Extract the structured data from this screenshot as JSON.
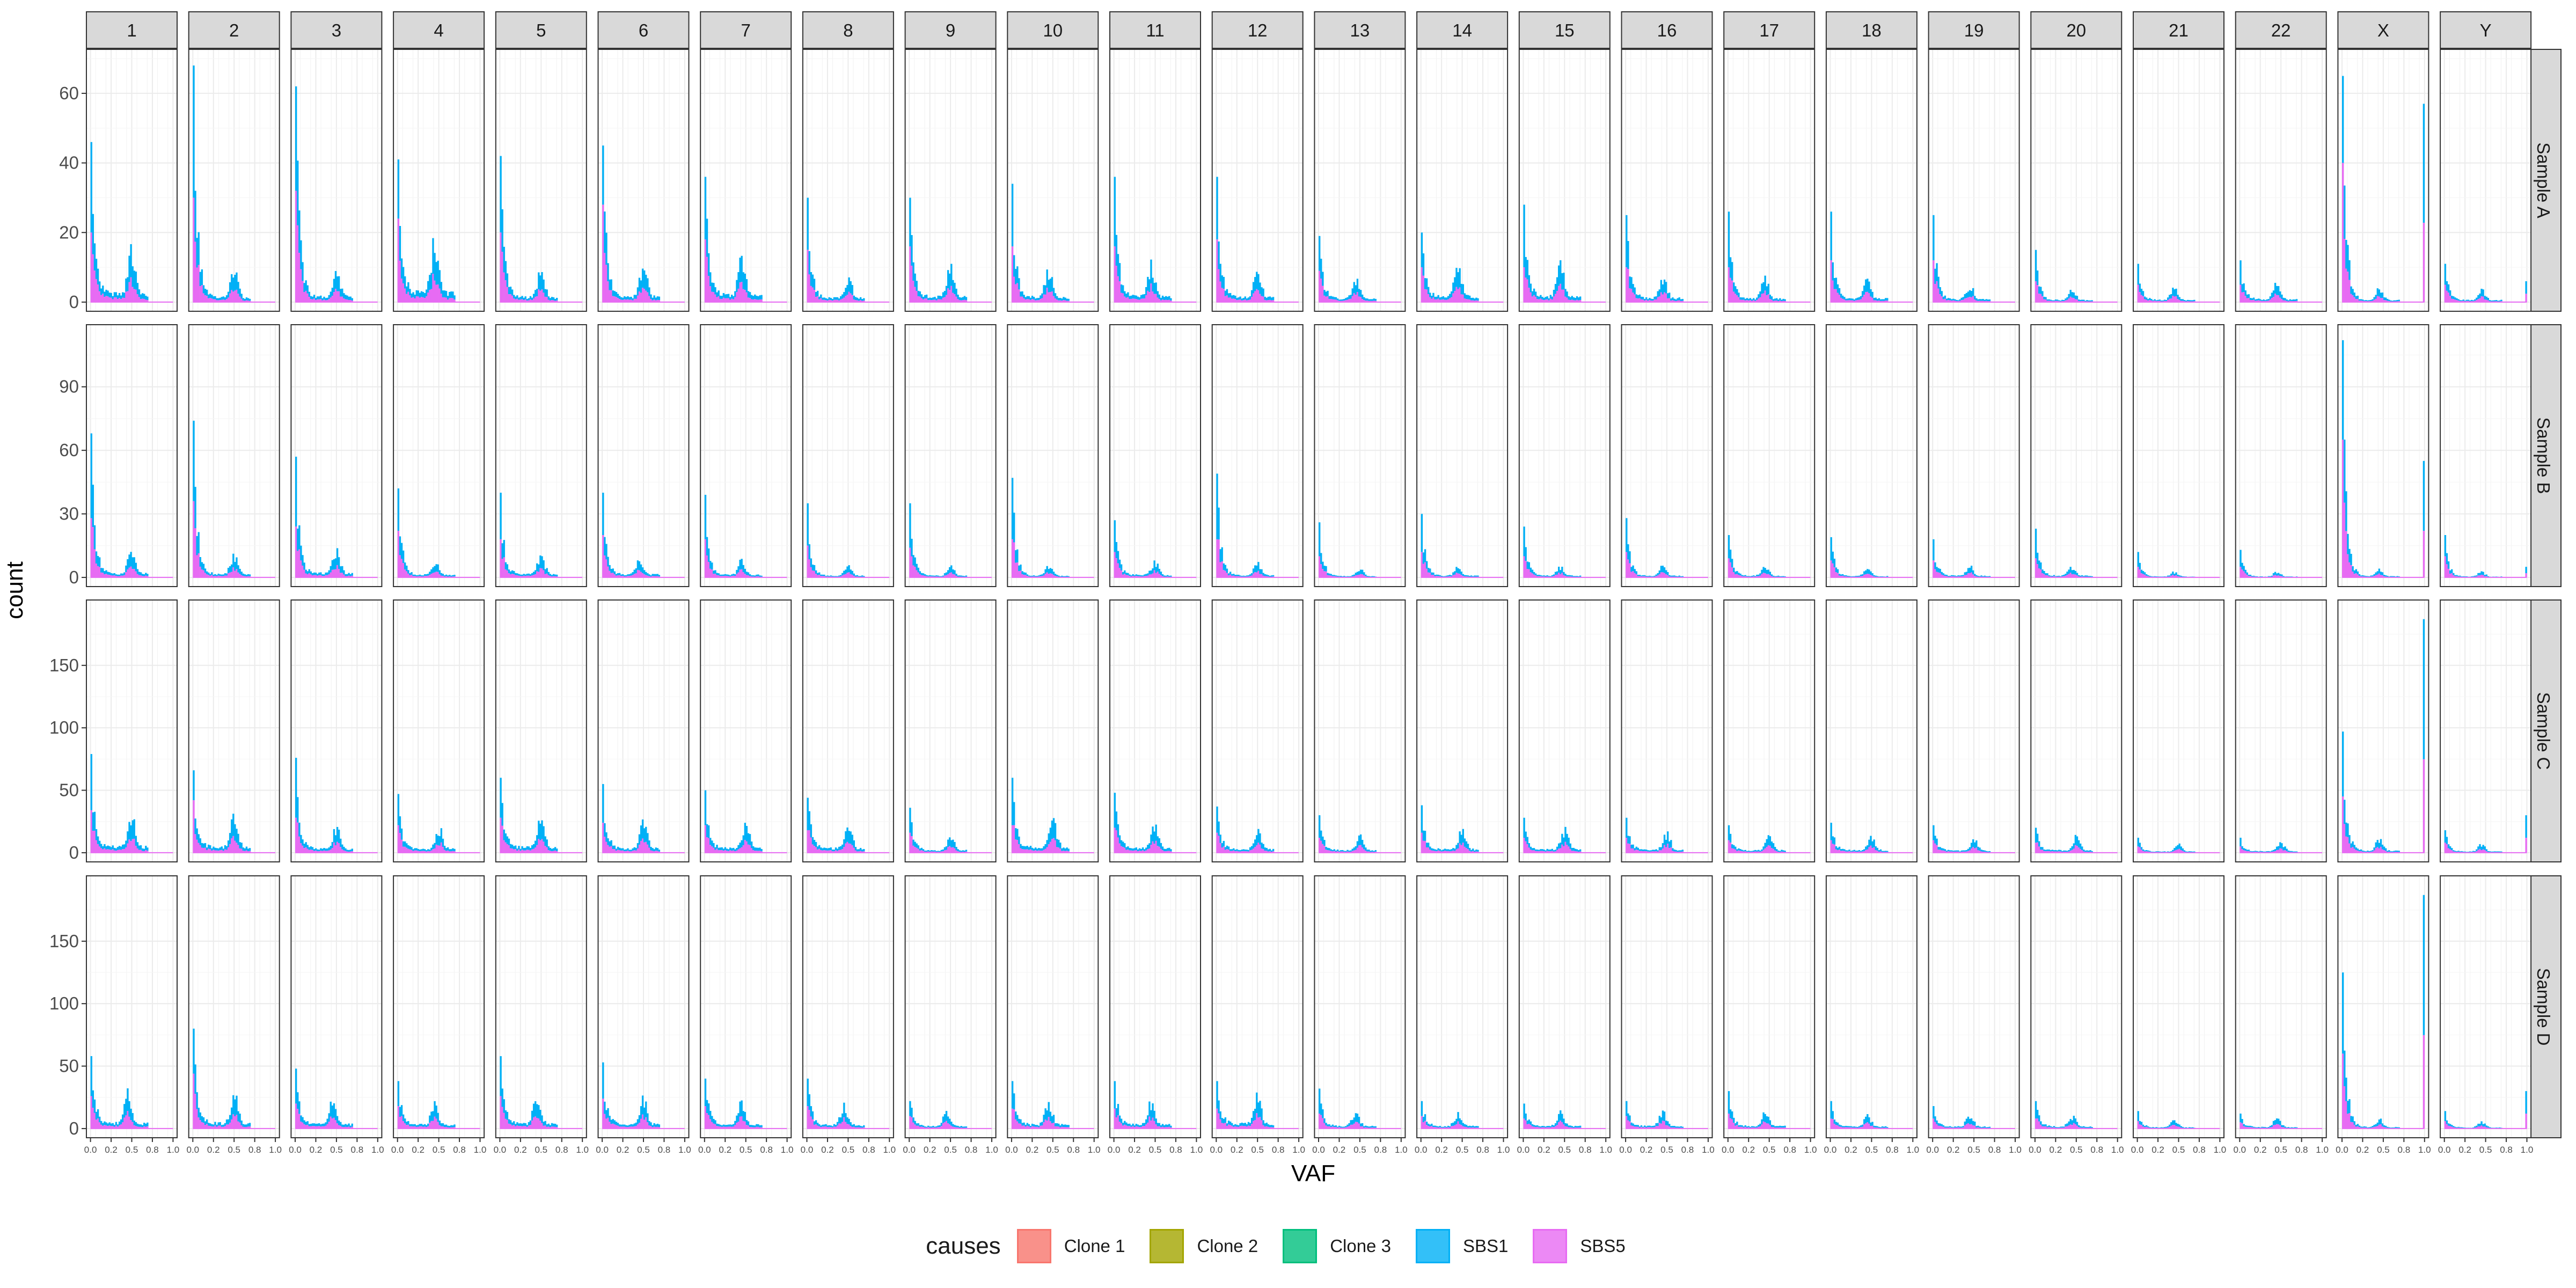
{
  "chart_data": {
    "type": "histogram-facet-grid",
    "xlabel": "VAF",
    "ylabel": "count",
    "columns": [
      "1",
      "2",
      "3",
      "4",
      "5",
      "6",
      "7",
      "8",
      "9",
      "10",
      "11",
      "12",
      "13",
      "14",
      "15",
      "16",
      "17",
      "18",
      "19",
      "20",
      "21",
      "22",
      "X",
      "Y"
    ],
    "rows": [
      "Sample A",
      "Sample B",
      "Sample C",
      "Sample D"
    ],
    "x_ticks": [
      "0.0",
      "0.2",
      "0.5",
      "0.8",
      "1.0"
    ],
    "x_tick_values": [
      0,
      0.25,
      0.5,
      0.75,
      1
    ],
    "xlim": [
      0,
      1
    ],
    "y_axes": [
      {
        "row": "Sample A",
        "ylim": [
          0,
          70
        ],
        "ticks": [
          0,
          20,
          40,
          60
        ]
      },
      {
        "row": "Sample B",
        "ylim": [
          0,
          115
        ],
        "ticks": [
          0,
          30,
          60,
          90
        ]
      },
      {
        "row": "Sample C",
        "ylim": [
          0,
          195
        ],
        "ticks": [
          0,
          50,
          100,
          150
        ]
      },
      {
        "row": "Sample D",
        "ylim": [
          0,
          195
        ],
        "ticks": [
          0,
          50,
          100,
          150
        ]
      }
    ],
    "legend": {
      "title": "causes",
      "position": "bottom",
      "items": [
        {
          "name": "Clone 1",
          "fill": "#F8766D"
        },
        {
          "name": "Clone 2",
          "fill": "#A3A500"
        },
        {
          "name": "Clone 3",
          "fill": "#00BF7D"
        },
        {
          "name": "SBS1",
          "fill": "#00B0F6"
        },
        {
          "name": "SBS5",
          "fill": "#E76BF3"
        }
      ]
    },
    "grid": true,
    "bins": 50,
    "panels": {
      "Sample A": {
        "peak_total": [
          46,
          68,
          62,
          41,
          42,
          45,
          36,
          30,
          30,
          34,
          36,
          36,
          19,
          20,
          28,
          25,
          26,
          26,
          25,
          15,
          11,
          12,
          65,
          11
        ],
        "peak_sbs5": [
          20,
          30,
          32,
          24,
          20,
          28,
          18,
          15,
          16,
          16,
          16,
          18,
          9,
          10,
          10,
          10,
          10,
          12,
          12,
          6,
          5,
          5,
          40,
          5
        ],
        "subclonal_peak": [
          12,
          7,
          8,
          14,
          7,
          8,
          10,
          6,
          8,
          7,
          8,
          7,
          5,
          8,
          8,
          6,
          5,
          5,
          4,
          3,
          3,
          4,
          3,
          3
        ],
        "clonal_peak_pos": [
          0.5,
          0.5,
          0.5,
          0.45,
          0.5,
          0.5,
          0.45,
          0.5,
          0.5,
          0.45,
          0.45,
          0.5,
          0.45,
          0.45,
          0.45,
          0.45,
          0.45,
          0.45,
          0.45,
          0.45,
          0.45,
          0.45,
          0.45,
          0.45
        ],
        "end_spike": [
          0,
          0,
          0,
          0,
          0,
          0,
          0,
          0,
          0,
          0,
          0,
          0,
          0,
          0,
          0,
          0,
          0,
          0,
          0,
          0,
          0,
          0,
          57,
          6
        ]
      },
      "Sample B": {
        "peak_total": [
          68,
          74,
          57,
          42,
          40,
          40,
          39,
          35,
          35,
          47,
          27,
          49,
          26,
          30,
          24,
          28,
          20,
          19,
          18,
          23,
          12,
          13,
          112,
          20
        ],
        "peak_sbs5": [
          28,
          36,
          24,
          22,
          18,
          20,
          18,
          15,
          14,
          18,
          12,
          18,
          10,
          12,
          10,
          12,
          9,
          8,
          8,
          9,
          5,
          5,
          65,
          10
        ],
        "subclonal_peak": [
          10,
          8,
          10,
          6,
          8,
          7,
          6,
          4,
          4,
          4,
          6,
          5,
          3,
          4,
          4,
          4,
          4,
          3,
          4,
          4,
          2,
          2,
          3,
          2
        ],
        "clonal_peak_pos": [
          0.5,
          0.5,
          0.5,
          0.45,
          0.5,
          0.45,
          0.45,
          0.5,
          0.5,
          0.45,
          0.5,
          0.5,
          0.5,
          0.45,
          0.45,
          0.45,
          0.45,
          0.45,
          0.45,
          0.45,
          0.45,
          0.45,
          0.45,
          0.45
        ],
        "end_spike": [
          0,
          0,
          0,
          0,
          0,
          0,
          0,
          0,
          0,
          0,
          0,
          0,
          0,
          0,
          0,
          0,
          0,
          0,
          0,
          0,
          0,
          0,
          55,
          5
        ]
      },
      "Sample C": {
        "peak_total": [
          79,
          66,
          76,
          47,
          60,
          55,
          50,
          44,
          36,
          60,
          48,
          37,
          30,
          38,
          28,
          28,
          22,
          24,
          22,
          20,
          12,
          12,
          97,
          18
        ],
        "peak_sbs5": [
          34,
          42,
          28,
          22,
          28,
          24,
          22,
          18,
          16,
          22,
          20,
          16,
          12,
          16,
          12,
          12,
          10,
          10,
          10,
          8,
          5,
          5,
          45,
          8
        ],
        "subclonal_peak": [
          24,
          22,
          16,
          16,
          22,
          18,
          18,
          18,
          10,
          22,
          18,
          14,
          10,
          14,
          14,
          12,
          10,
          10,
          8,
          10,
          5,
          6,
          8,
          5
        ],
        "clonal_peak_pos": [
          0.5,
          0.5,
          0.5,
          0.5,
          0.5,
          0.5,
          0.5,
          0.5,
          0.5,
          0.5,
          0.5,
          0.5,
          0.5,
          0.5,
          0.5,
          0.5,
          0.5,
          0.5,
          0.5,
          0.5,
          0.5,
          0.5,
          0.45,
          0.45
        ],
        "end_spike": [
          0,
          0,
          0,
          0,
          0,
          0,
          0,
          0,
          0,
          0,
          0,
          0,
          0,
          0,
          0,
          0,
          0,
          0,
          0,
          0,
          0,
          0,
          187,
          30
        ]
      },
      "Sample D": {
        "peak_total": [
          58,
          80,
          48,
          38,
          58,
          53,
          40,
          40,
          22,
          38,
          38,
          38,
          32,
          22,
          20,
          22,
          30,
          22,
          18,
          22,
          14,
          12,
          125,
          14
        ],
        "peak_sbs5": [
          26,
          44,
          20,
          18,
          26,
          24,
          18,
          18,
          10,
          16,
          16,
          16,
          12,
          10,
          8,
          10,
          12,
          8,
          8,
          8,
          6,
          5,
          60,
          6
        ],
        "subclonal_peak": [
          22,
          22,
          18,
          16,
          20,
          18,
          16,
          14,
          10,
          16,
          16,
          20,
          10,
          10,
          10,
          10,
          10,
          8,
          8,
          8,
          5,
          6,
          6,
          4
        ],
        "clonal_peak_pos": [
          0.45,
          0.5,
          0.45,
          0.45,
          0.45,
          0.5,
          0.45,
          0.45,
          0.45,
          0.45,
          0.45,
          0.5,
          0.45,
          0.45,
          0.45,
          0.45,
          0.45,
          0.45,
          0.45,
          0.45,
          0.45,
          0.45,
          0.45,
          0.45
        ],
        "end_spike": [
          0,
          0,
          0,
          0,
          0,
          0,
          0,
          0,
          0,
          0,
          0,
          0,
          0,
          0,
          0,
          0,
          0,
          0,
          0,
          0,
          0,
          0,
          187,
          30
        ]
      }
    }
  }
}
